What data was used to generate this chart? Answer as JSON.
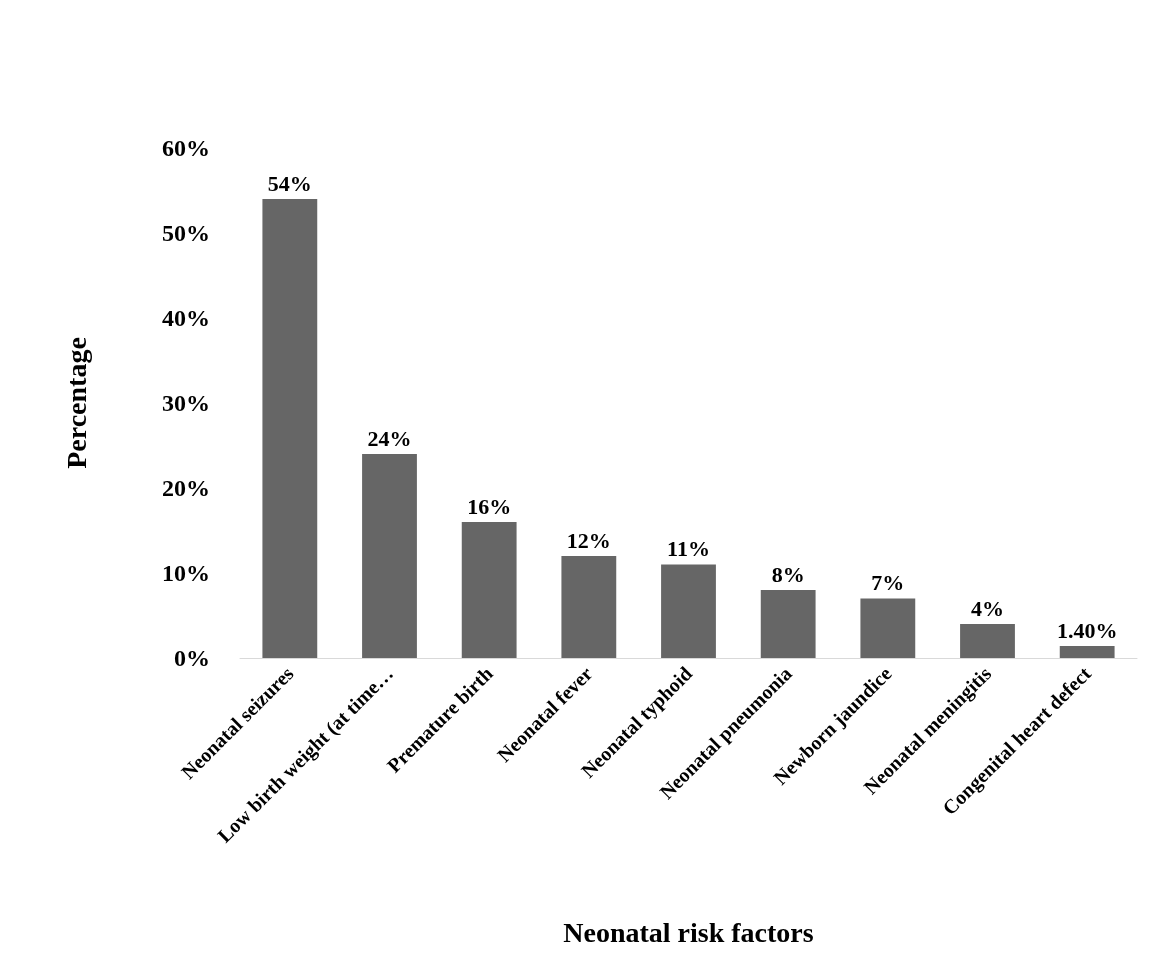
{
  "chart_data": {
    "type": "bar",
    "xlabel": "Neonatal risk factors",
    "ylabel": "Percentage",
    "categories": [
      "Neonatal seizures",
      "Low birth weight (at time…",
      "Premature birth",
      "Neonatal fever",
      "Neonatal typhoid",
      "Neonatal pneumonia",
      "Newborn jaundice",
      "Neonatal meningitis",
      "Congenital heart defect"
    ],
    "values": [
      54,
      24,
      16,
      12,
      11,
      8,
      7,
      4,
      1.4
    ],
    "value_labels": [
      "54%",
      "24%",
      "16%",
      "12%",
      "11%",
      "8%",
      "7%",
      "4%",
      "1.40%"
    ],
    "color": "#666666",
    "ylim": [
      0,
      60
    ],
    "yticks": [
      {
        "value": 0,
        "label": "0%"
      },
      {
        "value": 10,
        "label": "10%"
      },
      {
        "value": 20,
        "label": "20%"
      },
      {
        "value": 30,
        "label": "30%"
      },
      {
        "value": 40,
        "label": "40%"
      },
      {
        "value": 50,
        "label": "50%"
      },
      {
        "value": 60,
        "label": "60%"
      }
    ]
  }
}
